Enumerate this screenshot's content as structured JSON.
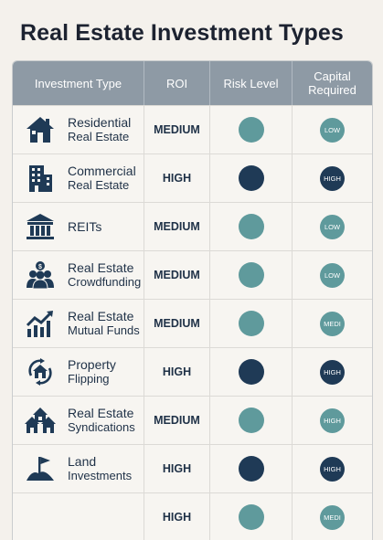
{
  "title": "Real Estate Investment Types",
  "headers": [
    "Investment Type",
    "ROI",
    "Risk Level",
    "Capital Required"
  ],
  "colors": {
    "dark": "#1f3a56",
    "teal": "#5f9a9c"
  },
  "rows": [
    {
      "line1": "Residential",
      "line2": "Real Estate",
      "icon": "house-icon",
      "roi": "MEDIUM",
      "risk": "teal",
      "cap": "LOW",
      "cap_color": "teal"
    },
    {
      "line1": "Commercial",
      "line2": "Real Estate",
      "icon": "building-icon",
      "roi": "HIGH",
      "risk": "dark",
      "cap": "HIGH",
      "cap_color": "dark"
    },
    {
      "line1": "REITs",
      "line2": "",
      "icon": "bank-icon",
      "roi": "MEDIUM",
      "risk": "teal",
      "cap": "LOW",
      "cap_color": "teal"
    },
    {
      "line1": "Real Estate",
      "line2": "Crowdfunding",
      "icon": "crowd-icon",
      "roi": "MEDIUM",
      "risk": "teal",
      "cap": "LOW",
      "cap_color": "teal"
    },
    {
      "line1": "Real Estate",
      "line2": "Mutual Funds",
      "icon": "growth-chart-icon",
      "roi": "MEDIUM",
      "risk": "teal",
      "cap": "MEDI",
      "cap_color": "teal"
    },
    {
      "line1": "Property",
      "line2": "Flipping",
      "icon": "house-cycle-icon",
      "roi": "HIGH",
      "risk": "dark",
      "cap": "HIGH",
      "cap_color": "dark"
    },
    {
      "line1": "Real Estate",
      "line2": "Syndications",
      "icon": "houses-icon",
      "roi": "MEDIUM",
      "risk": "teal",
      "cap": "HIGH",
      "cap_color": "teal"
    },
    {
      "line1": "Land",
      "line2": "Investments",
      "icon": "land-flag-icon",
      "roi": "HIGH",
      "risk": "dark",
      "cap": "HIGH",
      "cap_color": "dark"
    },
    {
      "line1": "",
      "line2": "",
      "icon": "",
      "roi": "HIGH",
      "risk": "teal",
      "cap": "MEDI",
      "cap_color": "teal"
    }
  ]
}
